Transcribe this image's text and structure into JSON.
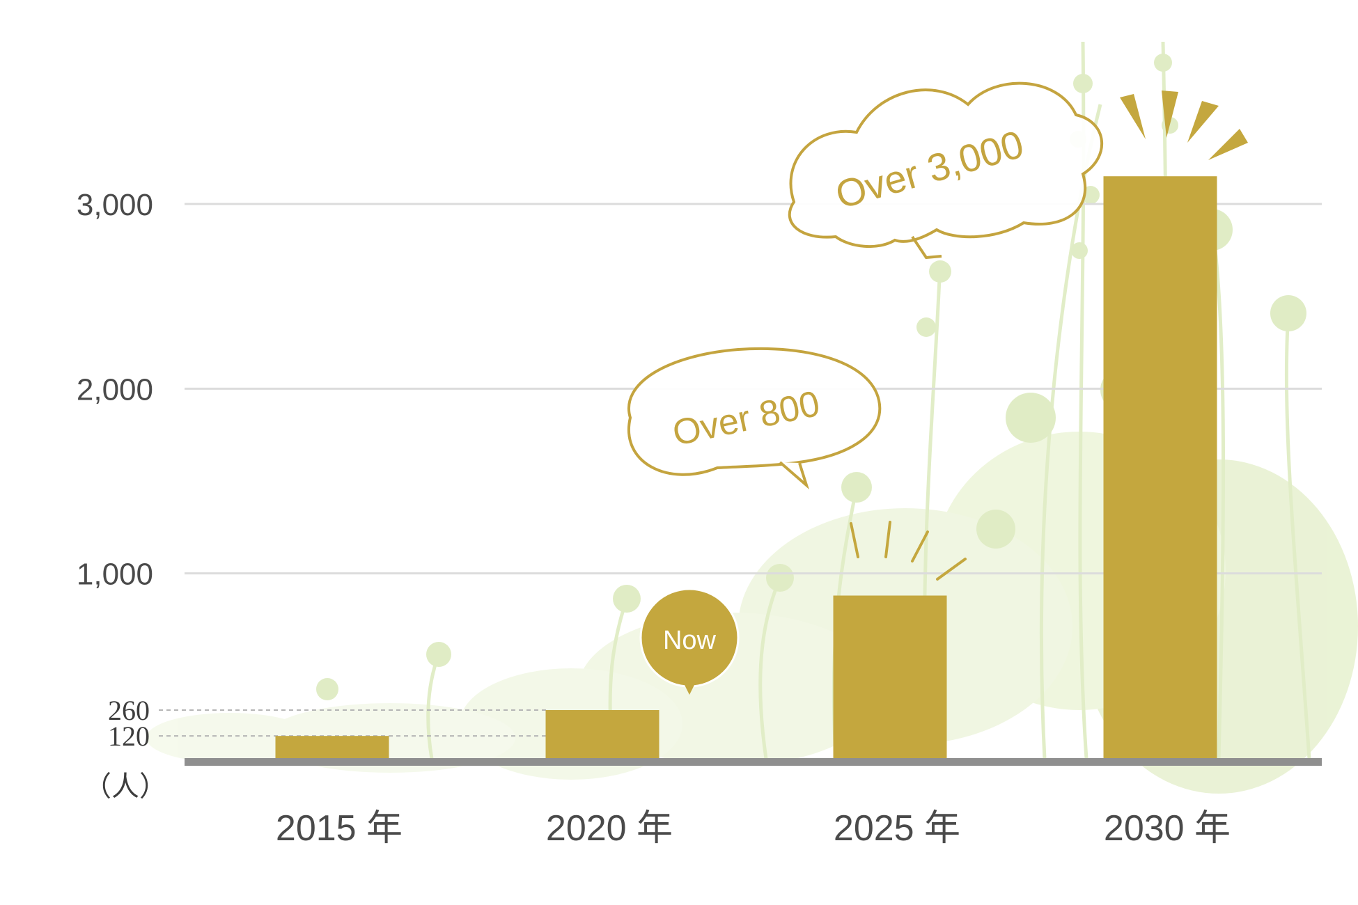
{
  "colors": {
    "bar": "#c4a73e",
    "baseline": "#8f8f8f",
    "grid": "#dcdcdc",
    "foliage": "#cfe3a6",
    "text": "#4a4a4a"
  },
  "chart_data": {
    "type": "bar",
    "categories": [
      "2015 年",
      "2020 年",
      "2025 年",
      "2030 年"
    ],
    "values": [
      120,
      260,
      880,
      3150
    ],
    "ylim": [
      0,
      3000
    ],
    "yticks": [
      {
        "value": 3000,
        "label": "3,000",
        "grid": true
      },
      {
        "value": 2000,
        "label": "2,000",
        "grid": true
      },
      {
        "value": 1000,
        "label": "1,000",
        "grid": true
      },
      {
        "value": 260,
        "label": "260",
        "grid": false,
        "dashed": true
      },
      {
        "value": 120,
        "label": "120",
        "grid": false,
        "dashed": true
      }
    ],
    "unit_label": "（人）",
    "grid": true,
    "annotations": [
      {
        "text": "Over 3,000",
        "category": "2030 年"
      },
      {
        "text": "Over 800",
        "category": "2025 年"
      },
      {
        "text": "Now",
        "category": "2020 年"
      }
    ]
  }
}
